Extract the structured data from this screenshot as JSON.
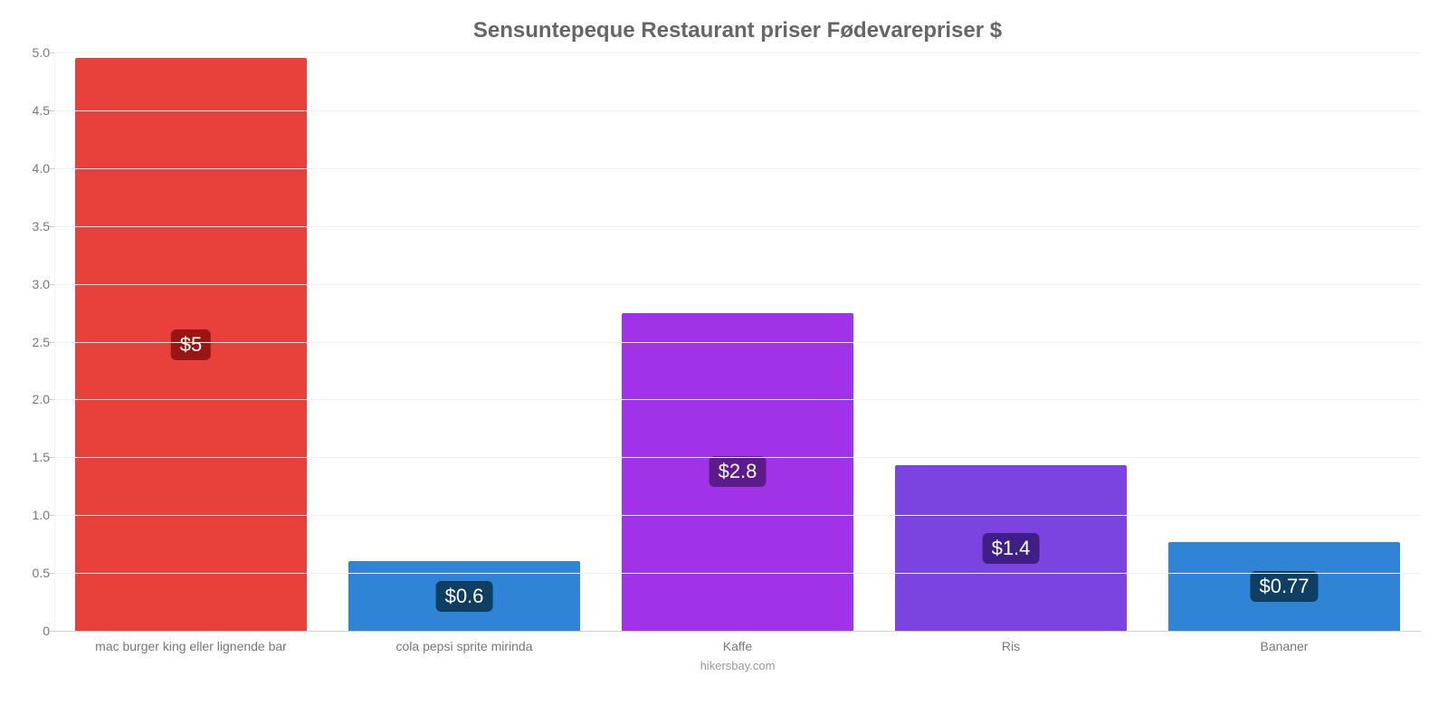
{
  "chart": {
    "type": "bar",
    "title": "Sensuntepeque Restaurant priser Fødevarepriser $",
    "title_fontsize": 24,
    "title_color": "#666666",
    "footer": "hikersbay.com",
    "footer_color": "#999999",
    "background_color": "#ffffff",
    "grid_color": "#f2f2f2",
    "axis_text_color": "#777777",
    "ylim_min": 0,
    "ylim_max": 5.0,
    "ytick_step": 0.5,
    "yticks": [
      "0",
      "0.5",
      "1.0",
      "1.5",
      "2.0",
      "2.5",
      "3.0",
      "3.5",
      "4.0",
      "4.5",
      "5.0"
    ],
    "bar_width_pct": 85,
    "value_label_fontsize": 22,
    "categories": [
      "mac burger king eller lignende bar",
      "cola pepsi sprite mirinda",
      "Kaffe",
      "Ris",
      "Bananer"
    ],
    "values": [
      4.95,
      0.6,
      2.75,
      1.43,
      0.77
    ],
    "value_labels": [
      "$5",
      "$0.6",
      "$2.8",
      "$1.4",
      "$0.77"
    ],
    "bar_colors": [
      "#e8403b",
      "#2f84d6",
      "#a033e8",
      "#7b44e0",
      "#2f84d6"
    ],
    "badge_colors": [
      "#9a1612",
      "#0f3e63",
      "#5d1a8a",
      "#3f1f85",
      "#0f3e63"
    ]
  }
}
